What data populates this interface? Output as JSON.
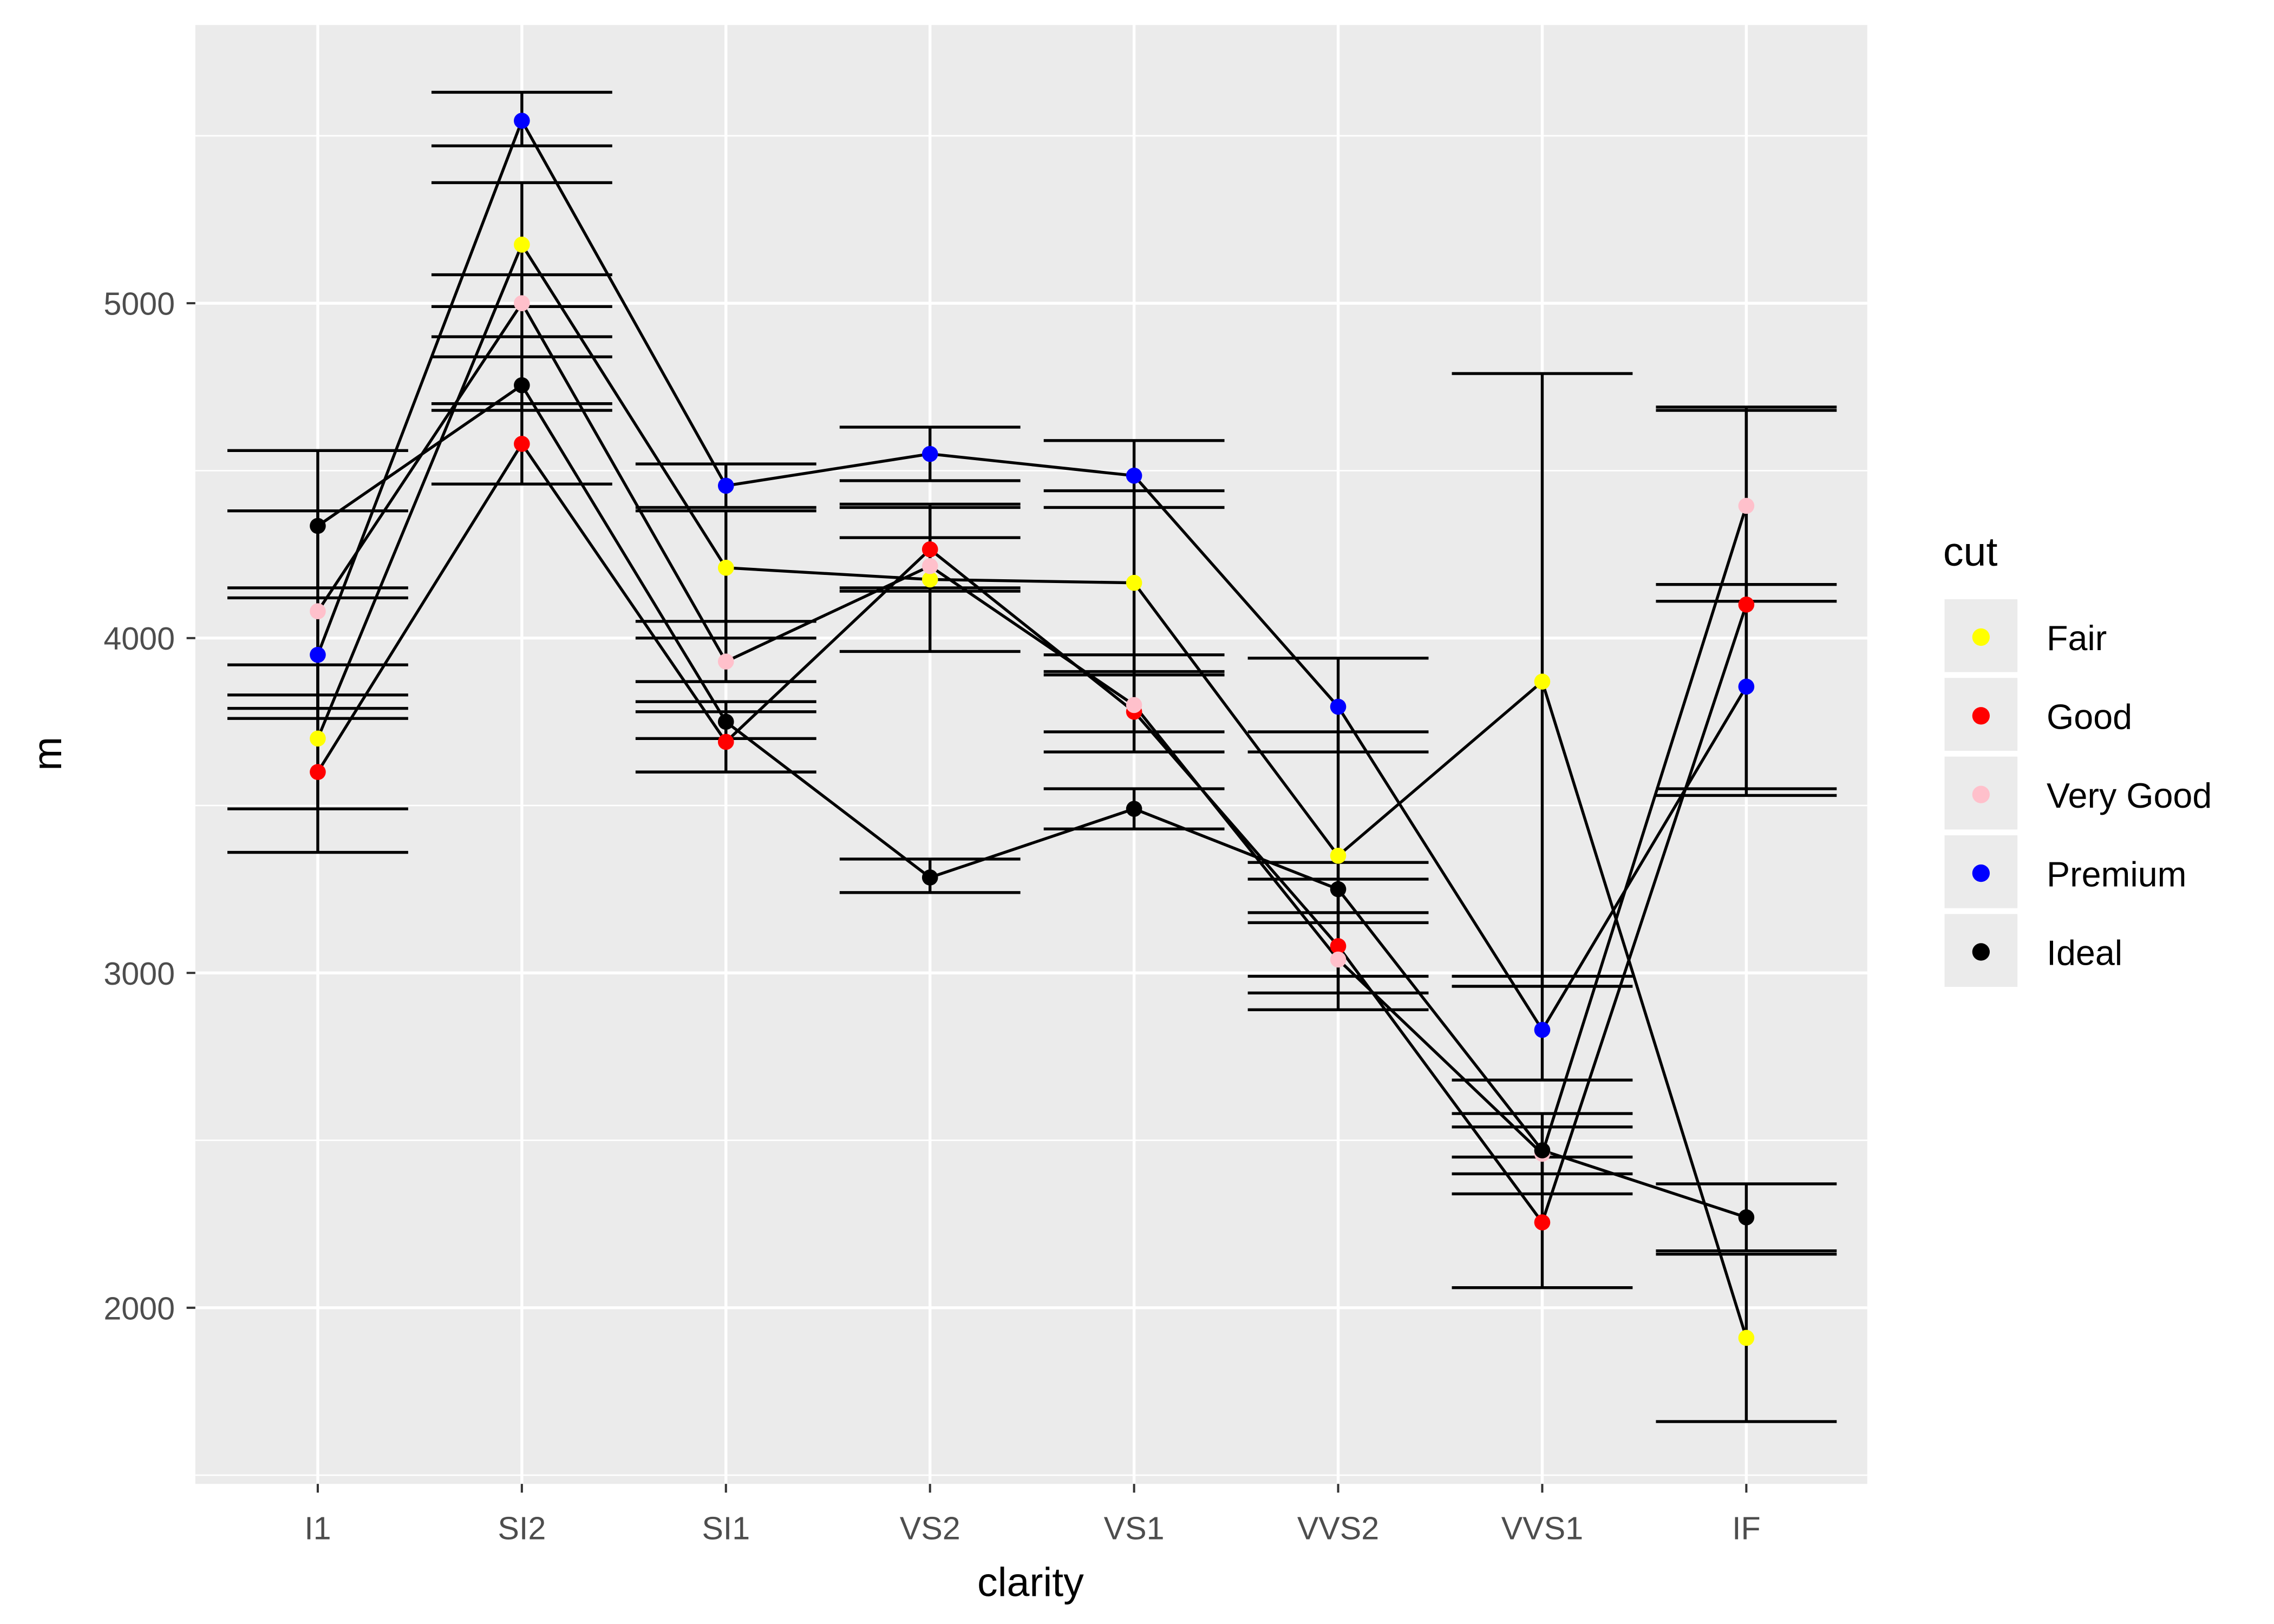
{
  "chart_data": {
    "type": "line",
    "title": "",
    "xlabel": "clarity",
    "ylabel": "m",
    "categories": [
      "I1",
      "SI2",
      "SI1",
      "VS2",
      "VS1",
      "VVS2",
      "VVS1",
      "IF"
    ],
    "ylim": [
      1474,
      5831
    ],
    "yticks": [
      2000,
      3000,
      4000,
      5000
    ],
    "yticklabels": [
      "2000",
      "3000",
      "4000",
      "5000"
    ],
    "grid": true,
    "legend": {
      "title": "cut",
      "placement": "right"
    },
    "series": [
      {
        "name": "Fair",
        "color": "#FFFF00",
        "values": [
          3700,
          5175,
          4210,
          4175,
          4165,
          3350,
          3870,
          1910
        ],
        "errors": [
          [
            3490,
            3920
          ],
          [
            4990,
            5360
          ],
          [
            4000,
            4380
          ],
          [
            3960,
            4400
          ],
          [
            3890,
            4440
          ],
          [
            2990,
            3720
          ],
          [
            2960,
            4790
          ],
          [
            1660,
            2160
          ]
        ]
      },
      {
        "name": "Good",
        "color": "#FF0000",
        "values": [
          3600,
          4580,
          3690,
          4265,
          3780,
          3080,
          2255,
          4100
        ],
        "errors": [
          [
            3360,
            3830
          ],
          [
            4460,
            4700
          ],
          [
            3600,
            3780
          ],
          [
            4140,
            4390
          ],
          [
            3660,
            3950
          ],
          [
            2940,
            3280
          ],
          [
            2060,
            2450
          ],
          [
            3550,
            4680
          ]
        ]
      },
      {
        "name": "Very Good",
        "color": "#FFC0CB",
        "values": [
          4080,
          5000,
          3930,
          4215,
          3800,
          3040,
          2460,
          4395
        ],
        "errors": [
          [
            3790,
            4380
          ],
          [
            4840,
            5085
          ],
          [
            3870,
            4050
          ],
          [
            4150,
            4300
          ],
          [
            3720,
            3900
          ],
          [
            2890,
            3150
          ],
          [
            2340,
            2580
          ],
          [
            4110,
            4690
          ]
        ]
      },
      {
        "name": "Premium",
        "color": "#0000FF",
        "values": [
          3950,
          5545,
          4455,
          4550,
          4485,
          3795,
          2830,
          3855
        ],
        "errors": [
          [
            3760,
            4120
          ],
          [
            5470,
            5630
          ],
          [
            4390,
            4520
          ],
          [
            4470,
            4630
          ],
          [
            4390,
            4590
          ],
          [
            3660,
            3940
          ],
          [
            2680,
            2990
          ],
          [
            3530,
            4160
          ]
        ]
      },
      {
        "name": "Ideal",
        "color": "#000000",
        "values": [
          4335,
          4755,
          3750,
          3285,
          3490,
          3250,
          2470,
          2270
        ],
        "errors": [
          [
            4150,
            4560
          ],
          [
            4680,
            4900
          ],
          [
            3700,
            3810
          ],
          [
            3240,
            3340
          ],
          [
            3430,
            3550
          ],
          [
            3180,
            3330
          ],
          [
            2400,
            2540
          ],
          [
            2170,
            2370
          ]
        ]
      }
    ]
  }
}
